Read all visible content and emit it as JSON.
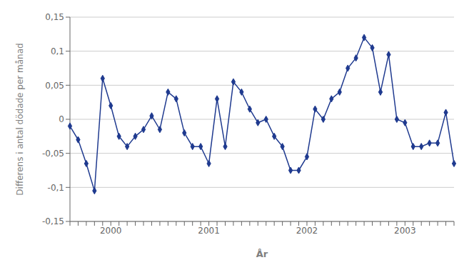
{
  "chart_data": {
    "type": "line",
    "categories": [
      null,
      null,
      null,
      null,
      null,
      "2000",
      null,
      null,
      null,
      null,
      null,
      null,
      null,
      null,
      null,
      null,
      null,
      "2001",
      null,
      null,
      null,
      null,
      null,
      null,
      null,
      null,
      null,
      null,
      null,
      "2002",
      null,
      null,
      null,
      null,
      null,
      null,
      null,
      null,
      null,
      null,
      null,
      "2003",
      null,
      null,
      null,
      null,
      null,
      null
    ],
    "values": [
      -0.01,
      -0.03,
      -0.065,
      -0.105,
      0.06,
      0.02,
      -0.025,
      -0.04,
      -0.025,
      -0.015,
      0.005,
      -0.015,
      0.04,
      0.03,
      -0.02,
      -0.04,
      -0.04,
      -0.065,
      0.03,
      -0.04,
      0.055,
      0.04,
      0.015,
      -0.005,
      0.0,
      -0.025,
      -0.04,
      -0.075,
      -0.075,
      -0.055,
      0.015,
      0.0,
      0.03,
      0.04,
      0.075,
      0.09,
      0.12,
      0.105,
      0.04,
      0.095,
      0.0,
      -0.005,
      -0.04,
      -0.04,
      -0.035,
      -0.035,
      0.01,
      -0.065
    ],
    "color": "#1f3a8f",
    "marker": "diamond",
    "xlabel": "År",
    "ylabel": "Differens i antal dödade per månad",
    "ylim": [
      -0.15,
      0.15
    ],
    "yticks": [
      {
        "value": -0.15,
        "label": "-0,15"
      },
      {
        "value": -0.1,
        "label": "-0,1"
      },
      {
        "value": -0.05,
        "label": "-0,05"
      },
      0,
      {
        "value": 0.05,
        "label": "0,05"
      },
      {
        "value": 0.1,
        "label": "0,1"
      },
      {
        "value": 0.15,
        "label": "0,15"
      }
    ],
    "grid": true
  }
}
